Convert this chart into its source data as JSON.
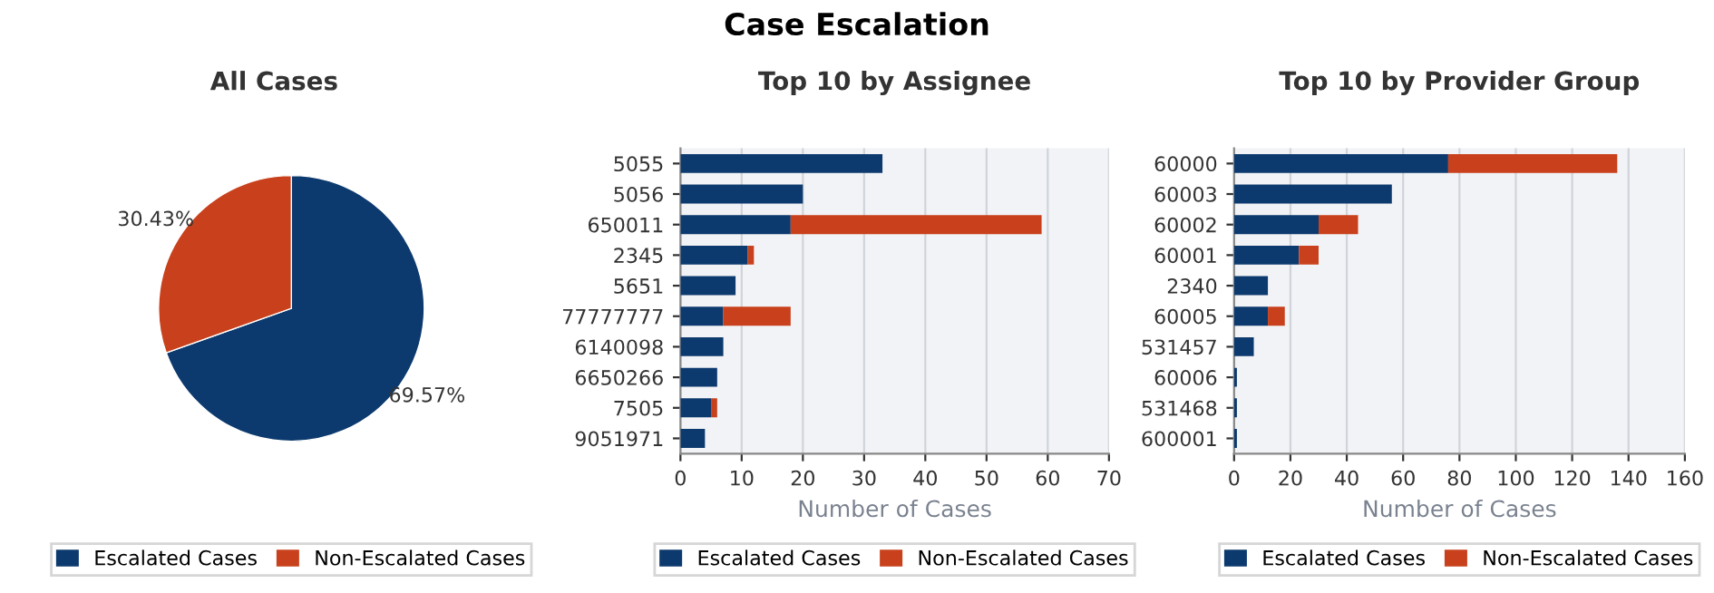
{
  "chart_data": [
    {
      "type": "pie",
      "subtitle": "All Cases",
      "categories": [
        "Escalated Cases",
        "Non-Escalated Cases"
      ],
      "values": [
        69.57,
        30.43
      ],
      "colors": [
        "#0d3a6e",
        "#c8411c"
      ],
      "value_labels": [
        "69.57%",
        "30.43%"
      ],
      "legend": "bottom"
    },
    {
      "type": "bar",
      "orientation": "horizontal",
      "stacked": true,
      "title": "Case Escalation",
      "subtitle": "Top 10 by Assignee",
      "xlabel": "Number of Cases",
      "categories": [
        "5055",
        "5056",
        "650011",
        "2345",
        "5651",
        "77777777",
        "6140098",
        "6650266",
        "7505",
        "9051971"
      ],
      "series": [
        {
          "name": "Escalated Cases",
          "color": "#0d3a6e",
          "values": [
            33,
            20,
            18,
            11,
            9,
            7,
            7,
            6,
            5,
            4
          ]
        },
        {
          "name": "Non-Escalated Cases",
          "color": "#c8411c",
          "values": [
            0,
            0,
            41,
            1,
            0,
            11,
            0,
            0,
            1,
            0
          ]
        }
      ],
      "xlim": [
        0,
        70
      ],
      "xticks": [
        0,
        10,
        20,
        30,
        40,
        50,
        60,
        70
      ],
      "grid": "x",
      "legend": "bottom"
    },
    {
      "type": "bar",
      "orientation": "horizontal",
      "stacked": true,
      "subtitle": "Top 10 by Provider Group",
      "xlabel": "Number of Cases",
      "categories": [
        "60000",
        "60003",
        "60002",
        "60001",
        "2340",
        "60005",
        "531457",
        "60006",
        "531468",
        "600001"
      ],
      "series": [
        {
          "name": "Escalated Cases",
          "color": "#0d3a6e",
          "values": [
            76,
            56,
            30,
            23,
            12,
            12,
            7,
            1,
            1,
            1
          ]
        },
        {
          "name": "Non-Escalated Cases",
          "color": "#c8411c",
          "values": [
            60,
            0,
            14,
            7,
            0,
            6,
            0,
            0,
            0,
            0
          ]
        }
      ],
      "xlim": [
        0,
        160
      ],
      "xticks": [
        0,
        20,
        40,
        60,
        80,
        100,
        120,
        140,
        160
      ],
      "grid": "x",
      "legend": "bottom"
    }
  ]
}
